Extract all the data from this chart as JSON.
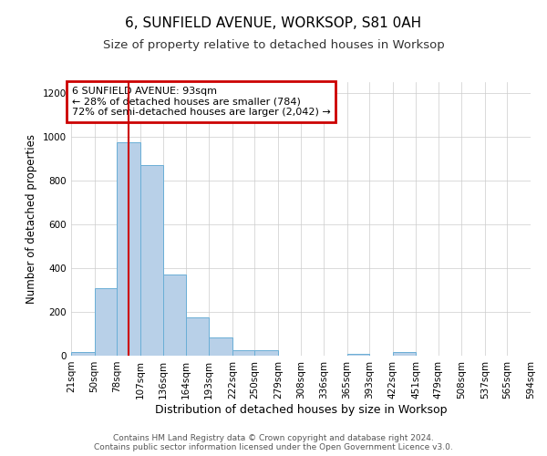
{
  "title1": "6, SUNFIELD AVENUE, WORKSOP, S81 0AH",
  "title2": "Size of property relative to detached houses in Worksop",
  "xlabel": "Distribution of detached houses by size in Worksop",
  "ylabel": "Number of detached properties",
  "bin_edges": [
    21,
    50,
    78,
    107,
    136,
    164,
    193,
    222,
    250,
    279,
    308,
    336,
    365,
    393,
    422,
    451,
    479,
    508,
    537,
    565,
    594
  ],
  "bar_heights": [
    15,
    310,
    975,
    870,
    370,
    175,
    85,
    25,
    25,
    0,
    0,
    0,
    10,
    0,
    15,
    0,
    0,
    0,
    0,
    0
  ],
  "bar_color": "#b8d0e8",
  "bar_edge_color": "#6aaed6",
  "red_line_x": 93,
  "red_line_color": "#cc0000",
  "annotation_text": "6 SUNFIELD AVENUE: 93sqm\n← 28% of detached houses are smaller (784)\n72% of semi-detached houses are larger (2,042) →",
  "annotation_box_edgecolor": "#cc0000",
  "annotation_text_color": "#000000",
  "ylim": [
    0,
    1250
  ],
  "yticks": [
    0,
    200,
    400,
    600,
    800,
    1000,
    1200
  ],
  "footer": "Contains HM Land Registry data © Crown copyright and database right 2024.\nContains public sector information licensed under the Open Government Licence v3.0.",
  "background_color": "#ffffff",
  "grid_color": "#cccccc",
  "title1_fontsize": 11,
  "title2_fontsize": 9.5,
  "xlabel_fontsize": 9,
  "ylabel_fontsize": 8.5,
  "tick_fontsize": 7.5,
  "footer_fontsize": 6.5,
  "annotation_fontsize": 8
}
